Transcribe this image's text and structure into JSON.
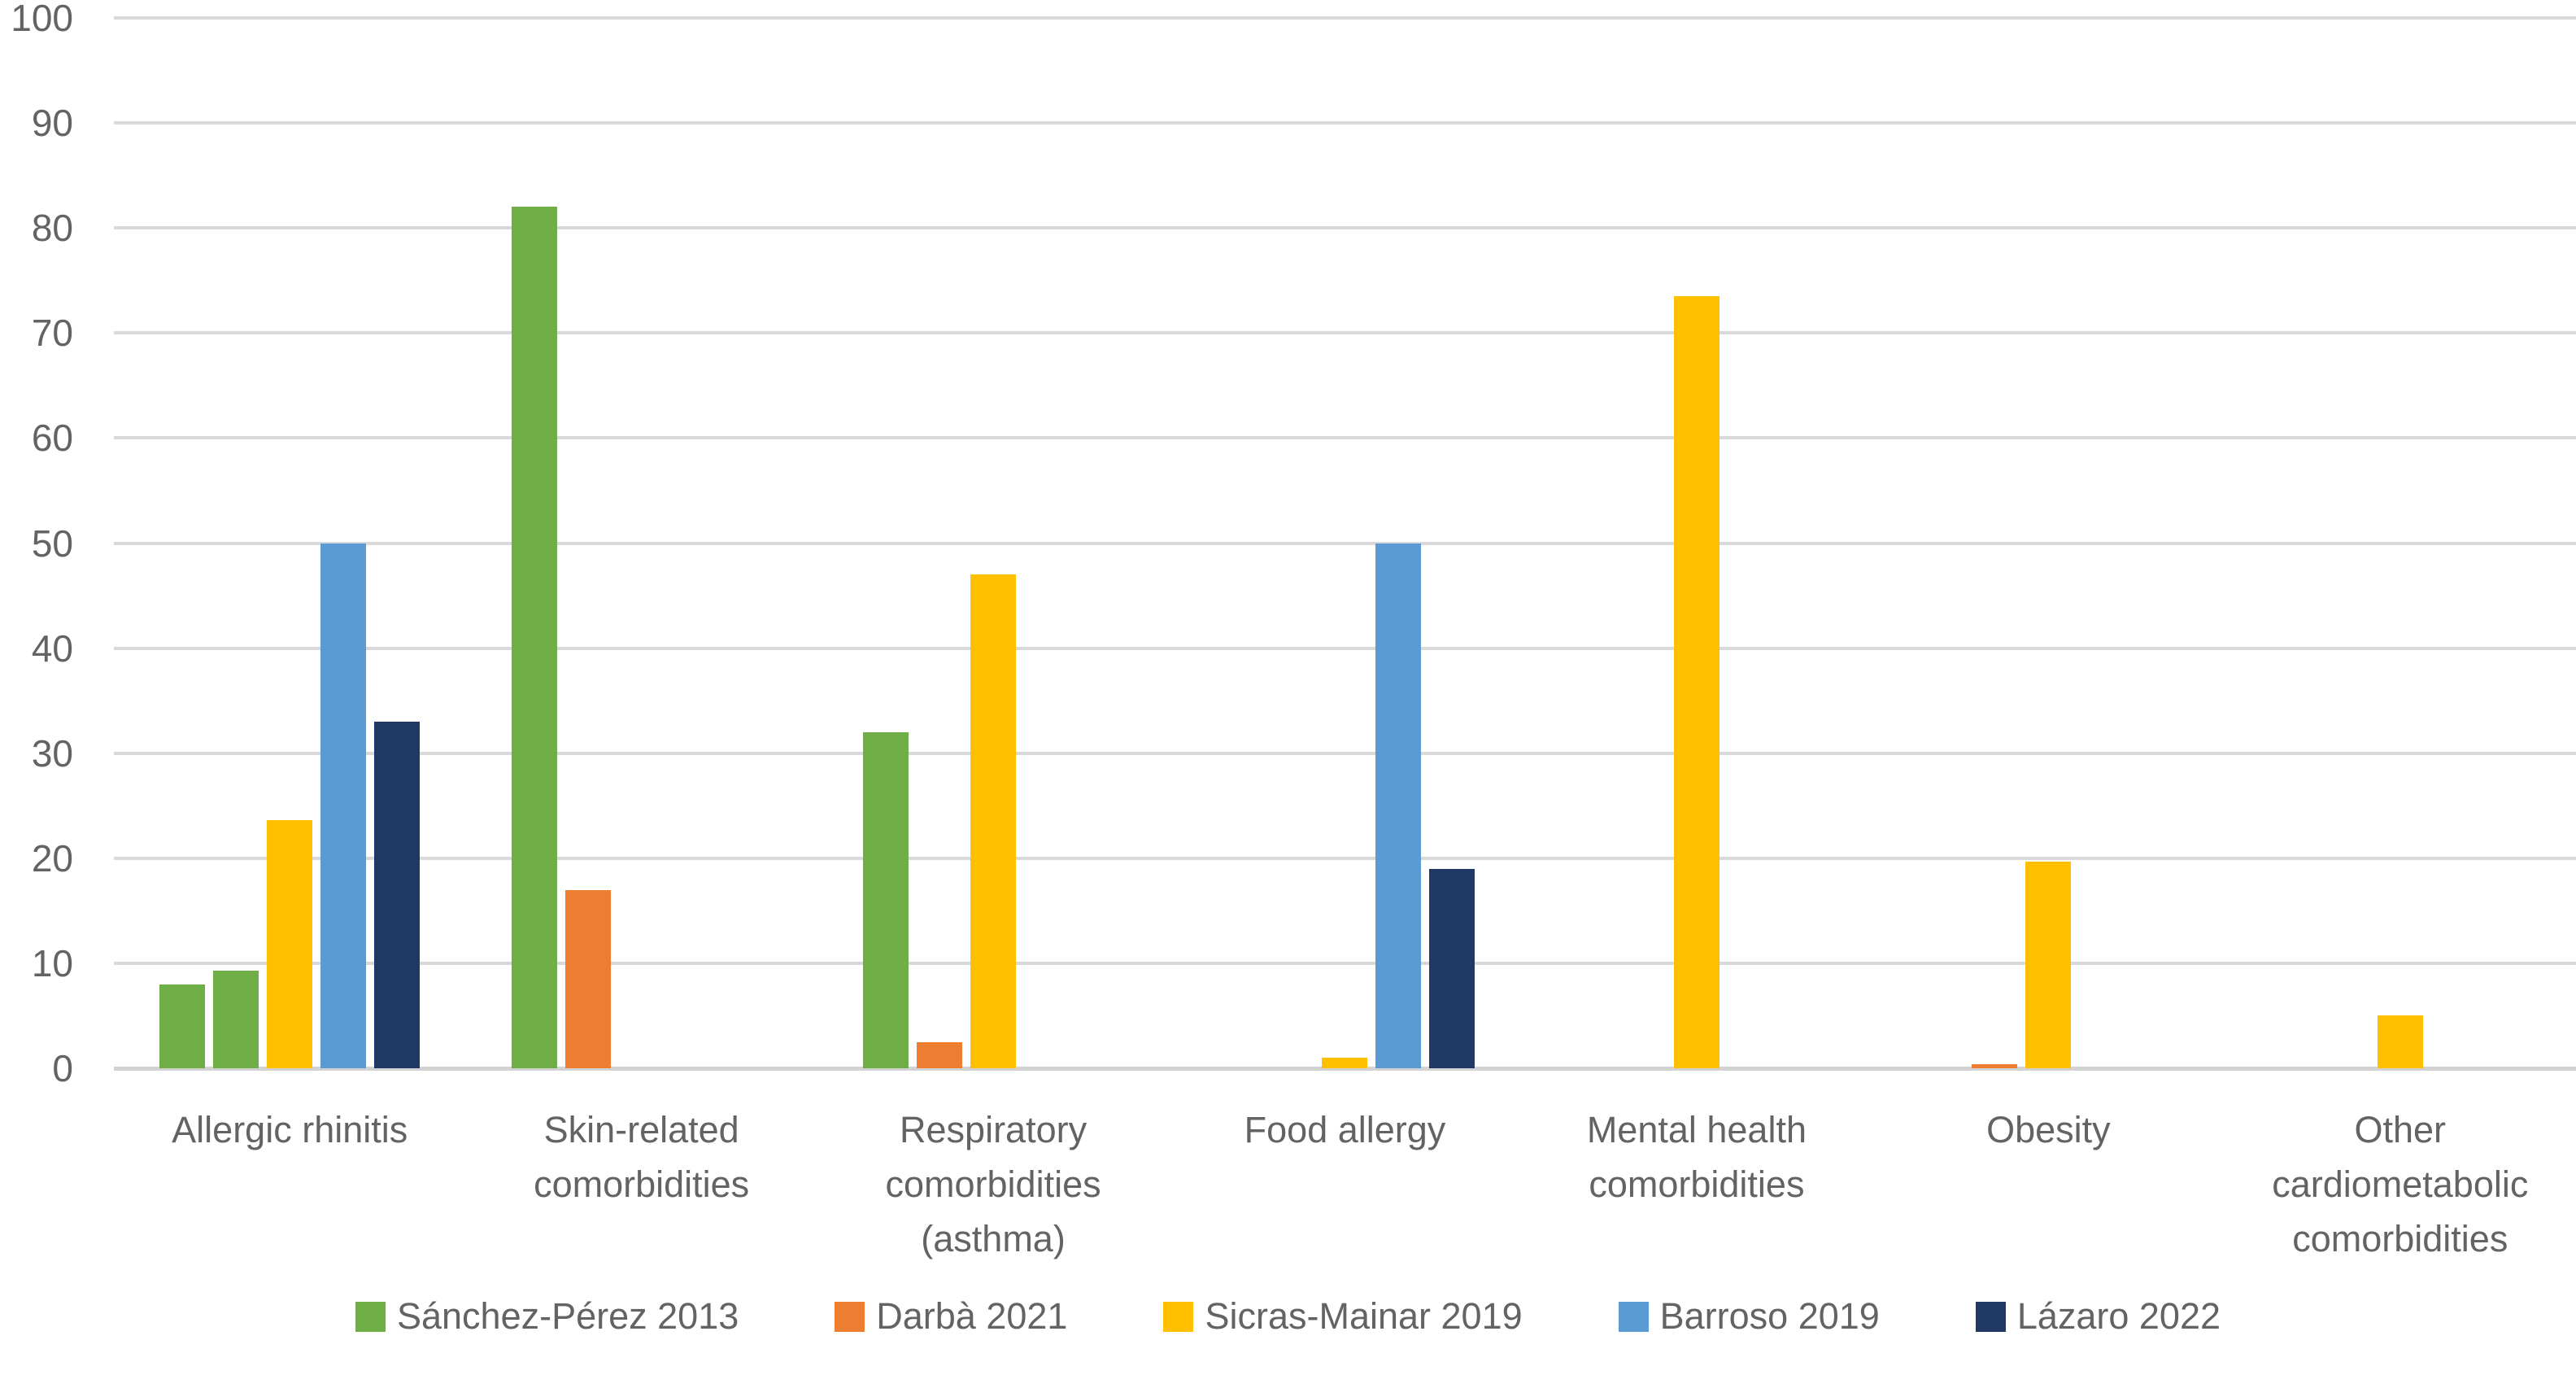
{
  "chart_data": {
    "type": "bar",
    "title": "",
    "xlabel": "",
    "ylabel": "",
    "ylim": [
      0,
      100
    ],
    "y_ticks": [
      100,
      90,
      80,
      70,
      60,
      50,
      40,
      30,
      20,
      10,
      0
    ],
    "grid": "horizontal",
    "legend_position": "bottom",
    "colors": {
      "gridline": "#D9D9D9",
      "axis_line": "#D2D2D2",
      "text": "#636363"
    },
    "series": [
      {
        "key": "sanchez-perez-2013",
        "name": "Sánchez-Pérez 2013",
        "color": "#6FAD47"
      },
      {
        "key": "darba-2021",
        "name": "Darbà 2021",
        "color": "#ED7D31"
      },
      {
        "key": "sicras-mainar-2019",
        "name": "Sicras-Mainar 2019",
        "color": "#FFC000"
      },
      {
        "key": "barroso-2019",
        "name": "Barroso 2019",
        "color": "#5B9BD5"
      },
      {
        "key": "lazaro-2022",
        "name": "Lázaro 2022",
        "color": "#1F3864"
      }
    ],
    "categories": [
      {
        "label_lines": [
          "Allergic rhinitis"
        ],
        "bars": [
          {
            "slot": 0,
            "series": 0,
            "value": 8
          },
          {
            "slot": 1,
            "series": 0,
            "value": 9.3
          },
          {
            "slot": 2,
            "series": 2,
            "value": 23.6
          },
          {
            "slot": 3,
            "series": 3,
            "value": 50
          },
          {
            "slot": 4,
            "series": 4,
            "value": 33
          }
        ]
      },
      {
        "label_lines": [
          "Skin-related",
          "comorbidities"
        ],
        "bars": [
          {
            "slot": 0,
            "series": 0,
            "value": 82
          },
          {
            "slot": 1,
            "series": 1,
            "value": 17
          }
        ]
      },
      {
        "label_lines": [
          "Respiratory",
          "comorbidities",
          "(asthma)"
        ],
        "bars": [
          {
            "slot": 0,
            "series": 0,
            "value": 32
          },
          {
            "slot": 1,
            "series": 1,
            "value": 2.5
          },
          {
            "slot": 2,
            "series": 2,
            "value": 47
          }
        ]
      },
      {
        "label_lines": [
          "Food allergy"
        ],
        "bars": [
          {
            "slot": 2,
            "series": 2,
            "value": 1
          },
          {
            "slot": 3,
            "series": 3,
            "value": 50
          },
          {
            "slot": 4,
            "series": 4,
            "value": 19
          }
        ]
      },
      {
        "label_lines": [
          "Mental health",
          "comorbidities"
        ],
        "bars": [
          {
            "slot": 2,
            "series": 2,
            "value": 73.5
          }
        ]
      },
      {
        "label_lines": [
          "Obesity"
        ],
        "bars": [
          {
            "slot": 1,
            "series": 1,
            "value": 0.4
          },
          {
            "slot": 2,
            "series": 2,
            "value": 19.7
          }
        ]
      },
      {
        "label_lines": [
          "Other",
          "cardiometabolic",
          "comorbidities"
        ],
        "bars": [
          {
            "slot": 2,
            "series": 2,
            "value": 5
          }
        ]
      }
    ]
  }
}
